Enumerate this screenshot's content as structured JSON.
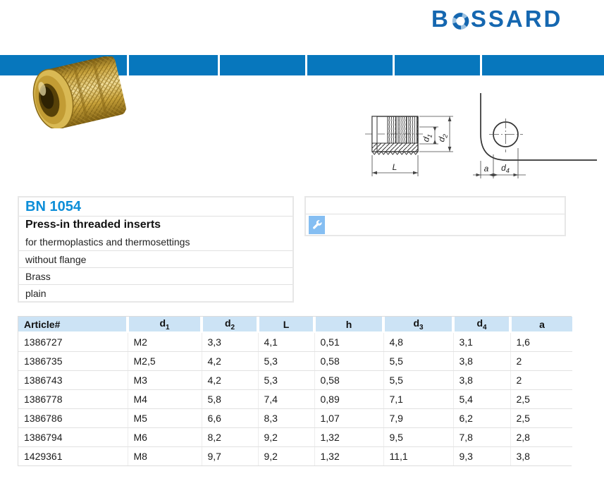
{
  "brand": {
    "logo_prefix": "B",
    "logo_suffix": "SSARD",
    "logo_o_icon": "segmented-ring-icon",
    "logo_color": "#1567b0"
  },
  "nav": {
    "segment_count": 6,
    "bar_color": "#0777bd"
  },
  "product_info": {
    "standard": "BN 1054",
    "title": "Press-in threaded inserts",
    "details": [
      "for thermoplastics and thermosettings",
      "without flange",
      "Brass",
      "plain"
    ]
  },
  "side_panel": {
    "icon": "wrench-icon",
    "icon_bg": "#85bef2"
  },
  "drawings": {
    "left": {
      "d1_main": "d",
      "d1_sub": "1",
      "d2_main": "d",
      "d2_sub": "2",
      "length_label": "L"
    },
    "right": {
      "a_label": "a",
      "d4_main": "d",
      "d4_sub": "4"
    }
  },
  "table": {
    "headers": [
      {
        "main": "Article#"
      },
      {
        "main": "d",
        "sub": "1"
      },
      {
        "main": "d",
        "sub": "2"
      },
      {
        "main": "L"
      },
      {
        "main": "h"
      },
      {
        "main": "d",
        "sub": "3"
      },
      {
        "main": "d",
        "sub": "4"
      },
      {
        "main": "a"
      }
    ],
    "rows": [
      [
        "1386727",
        "M2",
        "3,3",
        "4,1",
        "0,51",
        "4,8",
        "3,1",
        "1,6"
      ],
      [
        "1386735",
        "M2,5",
        "4,2",
        "5,3",
        "0,58",
        "5,5",
        "3,8",
        "2"
      ],
      [
        "1386743",
        "M3",
        "4,2",
        "5,3",
        "0,58",
        "5,5",
        "3,8",
        "2"
      ],
      [
        "1386778",
        "M4",
        "5,8",
        "7,4",
        "0,89",
        "7,1",
        "5,4",
        "2,5"
      ],
      [
        "1386786",
        "M5",
        "6,6",
        "8,3",
        "1,07",
        "7,9",
        "6,2",
        "2,5"
      ],
      [
        "1386794",
        "M6",
        "8,2",
        "9,2",
        "1,32",
        "9,5",
        "7,8",
        "2,8"
      ],
      [
        "1429361",
        "M8",
        "9,7",
        "9,2",
        "1,32",
        "11,1",
        "9,3",
        "3,8"
      ]
    ]
  },
  "colors": {
    "accent_blue": "#0777bd",
    "bn_blue": "#0d8ed8",
    "table_header_bg": "#cce3f5",
    "border_gray": "#e0e0e0"
  }
}
